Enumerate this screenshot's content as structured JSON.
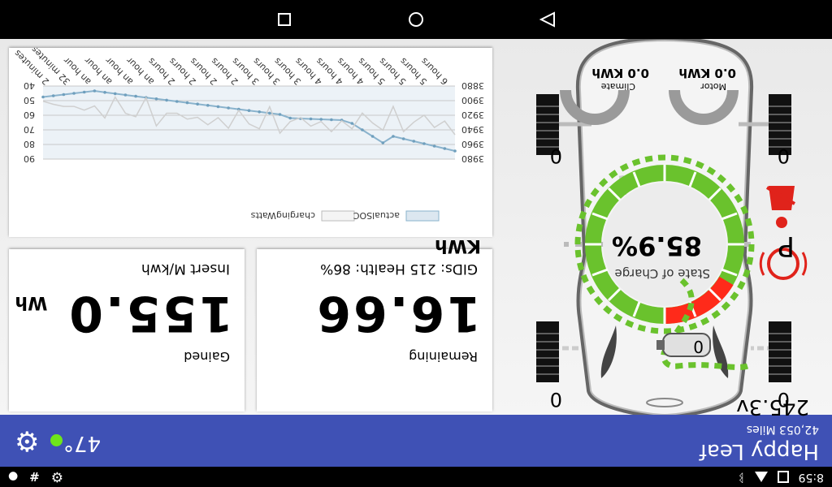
{
  "status_bar": {
    "time": "8:59",
    "icons": [
      "image-icon",
      "cloud-icon",
      "bluetooth-icon",
      "settings-icon",
      "hash-icon",
      "android-icon"
    ]
  },
  "header": {
    "title": "Happy Leaf",
    "odometer": "42,053 Miles",
    "temperature": "47°",
    "status_color": "#6ee51b"
  },
  "car": {
    "voltage": "245.3v",
    "gear": "P",
    "soc_label": "State of Charge",
    "soc_value": "85.9%",
    "motor_label": "Motor",
    "motor_value": "0.0 KWh",
    "climate_label": "Climate",
    "climate_value": "0.0 KWh",
    "tire_pressures": [
      "0",
      "0",
      "0",
      "0"
    ],
    "battery_temp": "0"
  },
  "remaining_card": {
    "value": "16.66",
    "unit": "KWh",
    "label": "Remaining",
    "footer": "GIDs: 215 Health: 86%"
  },
  "gained_card": {
    "value": "155.0",
    "unit": "Wh",
    "label": "Gained",
    "footer": "Insert M/kwh"
  },
  "chart_data": {
    "type": "line",
    "x": [
      "6 hours",
      "5 hours",
      "5 hours",
      "5 hours",
      "4 hours",
      "4 hours",
      "4 hours",
      "3 hours",
      "3 hours",
      "3 hours",
      "2 hours",
      "2 hours",
      "2 hours",
      "2 hours",
      "an hour",
      "an hour",
      "an hour",
      "an hour",
      "32 minutes",
      "2 minutes"
    ],
    "series": [
      {
        "name": "actualSOC",
        "axis": "left",
        "color": "#8ab3cd"
      },
      {
        "name": "chargingWatts",
        "axis": "right",
        "color": "#cfcfcf"
      }
    ],
    "left_ticks": [
      90,
      80,
      70,
      60,
      50,
      40
    ],
    "right_ticks": [
      3980,
      3960,
      3940,
      3920,
      3900,
      3880
    ],
    "legend_position": "bottom",
    "grid": true
  }
}
